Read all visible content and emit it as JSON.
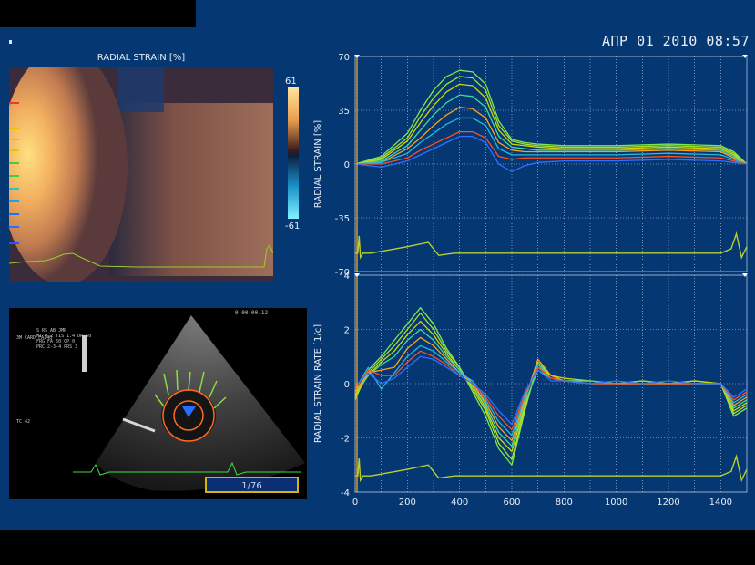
{
  "header": {
    "datetime": "АПР 01 2010 08:57",
    "dot_mark": ","
  },
  "mmode": {
    "title": "RADIAL STRAIN [%]",
    "colorbar_max": "61",
    "colorbar_min": "-61",
    "tick_colors": [
      "#ff3030",
      "#e8c400",
      "#e8c400",
      "#e8c400",
      "#e8c400",
      "#3cd040",
      "#3cd040",
      "#20c8c8",
      "#20a0e8",
      "#2070ff",
      "#2070ff",
      "#1a55ff"
    ]
  },
  "echo": {
    "overlay_lines": [
      "S  RS  AB JMR",
      "MI 0.2  TIS 1.4  DR 50",
      "FRG   FA 50 CP 0",
      "PRC 2-3-4 PRS 3"
    ],
    "timer": "0:00:00.12",
    "probe_label": "3M CARD  FA240",
    "depth_label": "TC  42",
    "frame_indicator": "1/76"
  },
  "chart_data": [
    {
      "type": "line",
      "ylabel": "RADIAL STRAIN [%]",
      "xlim": [
        0,
        1500
      ],
      "ylim": [
        -70,
        70
      ],
      "yticks": [
        70,
        35,
        0,
        -35,
        -70
      ],
      "x": [
        0,
        100,
        200,
        250,
        300,
        350,
        400,
        450,
        500,
        550,
        600,
        650,
        700,
        800,
        1000,
        1200,
        1400,
        1450,
        1500
      ],
      "series": [
        {
          "color": "#7ee84a",
          "values": [
            0,
            5,
            20,
            35,
            48,
            57,
            61,
            60,
            52,
            28,
            16,
            14,
            13,
            12,
            12,
            13,
            12,
            8,
            0
          ]
        },
        {
          "color": "#a8e030",
          "values": [
            0,
            4,
            17,
            31,
            43,
            52,
            57,
            56,
            48,
            25,
            15,
            13,
            12,
            11,
            11,
            12,
            11,
            7,
            0
          ]
        },
        {
          "color": "#d0d800",
          "values": [
            0,
            3,
            15,
            27,
            38,
            47,
            52,
            51,
            43,
            22,
            13,
            12,
            11,
            10,
            10,
            11,
            10,
            6,
            0
          ]
        },
        {
          "color": "#40d8a0",
          "values": [
            0,
            2,
            12,
            22,
            32,
            40,
            45,
            44,
            37,
            18,
            11,
            10,
            9,
            9,
            9,
            10,
            9,
            5,
            0
          ]
        },
        {
          "color": "#ffa020",
          "values": [
            0,
            1,
            10,
            17,
            25,
            32,
            37,
            36,
            30,
            14,
            9,
            8,
            8,
            8,
            8,
            9,
            8,
            4,
            0
          ]
        },
        {
          "color": "#28b8d8",
          "values": [
            0,
            1,
            7,
            14,
            20,
            26,
            30,
            30,
            25,
            10,
            6,
            6,
            6,
            6,
            6,
            7,
            6,
            3,
            0
          ]
        },
        {
          "color": "#ff5020",
          "values": [
            0,
            0,
            4,
            9,
            13,
            17,
            21,
            21,
            17,
            5,
            3,
            4,
            4,
            4,
            4,
            5,
            4,
            2,
            0
          ]
        },
        {
          "color": "#3070ff",
          "values": [
            0,
            -2,
            2,
            6,
            10,
            14,
            18,
            18,
            14,
            0,
            -5,
            -1,
            1,
            2,
            2,
            3,
            2,
            1,
            0
          ]
        }
      ],
      "ecg": {
        "color": "#b8d030",
        "level": -58
      }
    },
    {
      "type": "line",
      "ylabel": "RADIAL STRAIN RATE [1/c]",
      "xlim": [
        0,
        1500
      ],
      "ylim": [
        -4,
        4
      ],
      "yticks": [
        4,
        2,
        0,
        -2,
        -4
      ],
      "xticks": [
        0,
        200,
        400,
        600,
        800,
        1000,
        1200,
        1400
      ],
      "x": [
        0,
        50,
        100,
        150,
        200,
        250,
        300,
        350,
        400,
        450,
        500,
        550,
        600,
        650,
        700,
        750,
        800,
        900,
        1000,
        1100,
        1200,
        1300,
        1400,
        1450,
        1500
      ],
      "series": [
        {
          "color": "#7ee84a",
          "values": [
            -0.6,
            0.5,
            1.0,
            1.6,
            2.2,
            2.8,
            2.2,
            1.3,
            0.6,
            -0.3,
            -1.2,
            -2.4,
            -3.0,
            -1.0,
            0.8,
            0.3,
            0.1,
            0.1,
            0.0,
            0.1,
            0.0,
            0.1,
            0.0,
            -1.2,
            -0.9
          ]
        },
        {
          "color": "#a8e030",
          "values": [
            -0.5,
            0.4,
            0.9,
            1.4,
            2.0,
            2.6,
            2.0,
            1.2,
            0.6,
            -0.2,
            -1.0,
            -2.2,
            -2.8,
            -0.9,
            0.7,
            0.3,
            0.1,
            0.1,
            0.0,
            0.1,
            0.0,
            0.1,
            0.0,
            -1.1,
            -0.8
          ]
        },
        {
          "color": "#d0d800",
          "values": [
            -0.4,
            0.3,
            0.8,
            1.2,
            1.8,
            2.3,
            1.8,
            1.1,
            0.5,
            -0.1,
            -0.9,
            -2.0,
            -2.5,
            -0.8,
            0.6,
            0.3,
            0.2,
            0.1,
            0.0,
            0.0,
            0.0,
            0.1,
            0.0,
            -1.0,
            -0.7
          ]
        },
        {
          "color": "#40d8a0",
          "values": [
            -0.3,
            0.3,
            0.7,
            1.0,
            1.6,
            2.0,
            1.6,
            1.0,
            0.5,
            0.0,
            -0.8,
            -1.8,
            -2.3,
            -0.7,
            0.5,
            0.2,
            0.1,
            0.1,
            0.0,
            0.0,
            0.0,
            0.0,
            0.0,
            -0.9,
            -0.6
          ]
        },
        {
          "color": "#ffa020",
          "values": [
            -0.3,
            0.4,
            0.5,
            0.6,
            1.3,
            1.7,
            1.4,
            0.9,
            0.4,
            0.0,
            -0.7,
            -1.6,
            -2.1,
            -0.6,
            0.9,
            0.3,
            0.1,
            0.0,
            0.0,
            0.0,
            0.0,
            0.0,
            0.0,
            -0.8,
            -0.5
          ]
        },
        {
          "color": "#28b8d8",
          "values": [
            -0.2,
            0.6,
            -0.2,
            0.4,
            1.0,
            1.4,
            1.2,
            0.8,
            0.4,
            0.1,
            -0.6,
            -1.4,
            -1.9,
            -0.5,
            0.7,
            0.2,
            0.1,
            0.0,
            0.0,
            0.0,
            0.0,
            0.0,
            0.0,
            -0.7,
            -0.4
          ]
        },
        {
          "color": "#ff5020",
          "values": [
            -0.2,
            0.5,
            0.3,
            0.3,
            0.8,
            1.2,
            1.0,
            0.7,
            0.3,
            0.0,
            -0.5,
            -1.2,
            -1.7,
            -0.4,
            0.6,
            0.2,
            0.1,
            0.0,
            0.0,
            0.0,
            0.0,
            0.0,
            0.0,
            -0.6,
            -0.3
          ]
        },
        {
          "color": "#3070ff",
          "values": [
            -0.1,
            0.4,
            0.0,
            0.2,
            0.6,
            1.0,
            0.9,
            0.6,
            0.3,
            0.0,
            -0.4,
            -1.0,
            -1.5,
            -0.3,
            0.5,
            0.1,
            0.1,
            0.0,
            0.1,
            0.0,
            0.1,
            0.0,
            0.0,
            -0.5,
            -0.2
          ]
        }
      ],
      "ecg": {
        "color": "#b8d030",
        "level": -3.4
      }
    }
  ]
}
